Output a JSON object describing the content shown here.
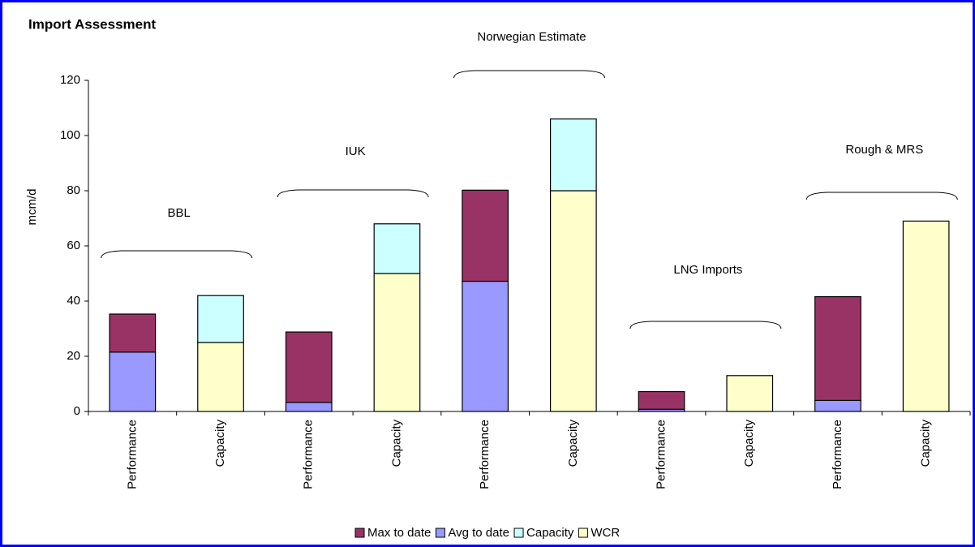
{
  "chart_data": {
    "type": "bar",
    "stacked": true,
    "title": "Import Assessment",
    "y_label": "mcm/d",
    "categories": [
      "Performance",
      "Capacity",
      "Performance",
      "Capacity",
      "Performance",
      "Capacity",
      "Performance",
      "Capacity",
      "Performance",
      "Capacity"
    ],
    "series": [
      {
        "name": "Max to date",
        "color": "#993366",
        "values": [
          13.8,
          null,
          25.5,
          null,
          33,
          null,
          6.4,
          null,
          37.6,
          null
        ]
      },
      {
        "name": "Avg to date",
        "color": "#9999FF",
        "values": [
          21.5,
          null,
          3.3,
          null,
          47.2,
          null,
          0.8,
          null,
          4,
          null
        ]
      },
      {
        "name": "Capacity",
        "color": "#CCFFFF",
        "values": [
          null,
          17,
          null,
          18,
          null,
          26,
          null,
          null,
          null,
          null
        ]
      },
      {
        "name": "WCR",
        "color": "#FFFFCC",
        "values": [
          null,
          25,
          null,
          50,
          null,
          80,
          null,
          13,
          null,
          69
        ]
      }
    ],
    "groups": [
      "BBL",
      "IUK",
      "Norwegian Estimate",
      "LNG Imports",
      "Rough & MRS"
    ],
    "ylim": [
      0,
      120
    ],
    "yticks": [
      0,
      20,
      40,
      60,
      80,
      100,
      120
    ],
    "grid": false,
    "legend": "bottom"
  }
}
